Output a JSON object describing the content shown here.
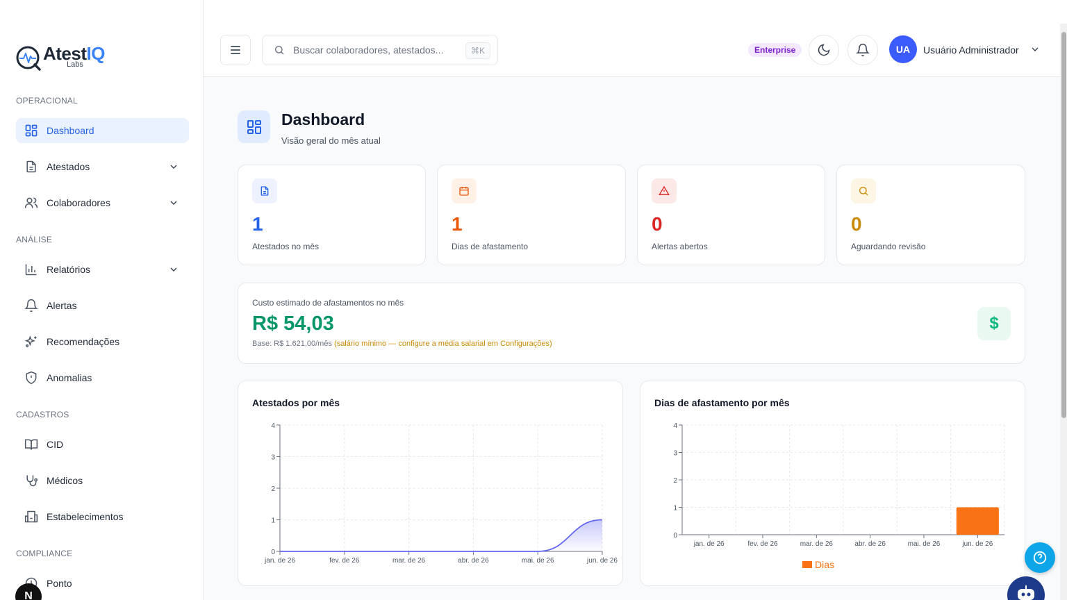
{
  "sidebar": {
    "logo": {
      "brand_main": "Atest",
      "brand_accent": "IQ",
      "sub": "Labs"
    },
    "sections": [
      {
        "title": "OPERACIONAL"
      },
      {
        "title": "ANÁLISE"
      },
      {
        "title": "CADASTROS"
      },
      {
        "title": "COMPLIANCE"
      }
    ],
    "items": [
      {
        "label": "Dashboard",
        "icon": "dashboard-icon",
        "active": true
      },
      {
        "label": "Atestados",
        "icon": "document-icon",
        "expandable": true
      },
      {
        "label": "Colaboradores",
        "icon": "users-icon",
        "expandable": true
      },
      {
        "label": "Relatórios",
        "icon": "bar-chart-icon",
        "expandable": true
      },
      {
        "label": "Alertas",
        "icon": "bell-icon"
      },
      {
        "label": "Recomendações",
        "icon": "sparkles-icon"
      },
      {
        "label": "Anomalias",
        "icon": "shield-alert-icon"
      },
      {
        "label": "CID",
        "icon": "book-open-icon"
      },
      {
        "label": "Médicos",
        "icon": "stethoscope-icon"
      },
      {
        "label": "Estabelecimentos",
        "icon": "building-icon"
      },
      {
        "label": "Ponto",
        "icon": "clock-icon"
      }
    ],
    "corner_badge": "N"
  },
  "header": {
    "search": {
      "placeholder": "Buscar colaboradores, atestados...",
      "shortcut": "⌘K"
    },
    "plan_badge": "Enterprise",
    "user": {
      "initials": "UA",
      "name": "Usuário Administrador"
    }
  },
  "page": {
    "title": "Dashboard",
    "subtitle": "Visão geral do mês atual"
  },
  "kpis": [
    {
      "value": "1",
      "label": "Atestados no mês",
      "color": "#2563eb",
      "icon": "file-text-icon",
      "icon_bg": "#eef2ff"
    },
    {
      "value": "1",
      "label": "Dias de afastamento",
      "color": "#ea580c",
      "icon": "calendar-icon",
      "icon_bg": "#fff1e6"
    },
    {
      "value": "0",
      "label": "Alertas abertos",
      "color": "#dc2626",
      "icon": "alert-triangle-icon",
      "icon_bg": "#fde8e8"
    },
    {
      "value": "0",
      "label": "Aguardando revisão",
      "color": "#ca8a04",
      "icon": "search-icon",
      "icon_bg": "#fef6e4"
    }
  ],
  "cost": {
    "title": "Custo estimado de afastamentos no mês",
    "value": "R$ 54,03",
    "base": "Base: R$ 1.621,00/mês",
    "note": "(salário mínimo — configure a média salarial em Configurações)",
    "icon_glyph": "$"
  },
  "chart_data": [
    {
      "type": "area",
      "title": "Atestados por mês",
      "categories": [
        "jan. de 26",
        "fev. de 26",
        "mar. de 26",
        "abr. de 26",
        "mai. de 26",
        "jun. de 26"
      ],
      "series": [
        {
          "values": [
            0,
            0,
            0,
            0,
            0,
            1
          ],
          "color": "#6366f1"
        }
      ],
      "ylim": [
        0,
        4
      ],
      "yticks": [
        0,
        1,
        2,
        3,
        4
      ],
      "grid": true
    },
    {
      "type": "bar",
      "title": "Dias de afastamento por mês",
      "categories": [
        "jan. de 26",
        "fev. de 26",
        "mar. de 26",
        "abr. de 26",
        "mai. de 26",
        "jun. de 26"
      ],
      "series": [
        {
          "name": "Dias",
          "values": [
            0,
            0,
            0,
            0,
            0,
            1
          ],
          "color": "#f97316"
        }
      ],
      "ylim": [
        0,
        4
      ],
      "yticks": [
        0,
        1,
        2,
        3,
        4
      ],
      "grid": true,
      "legend": "bottom"
    }
  ]
}
